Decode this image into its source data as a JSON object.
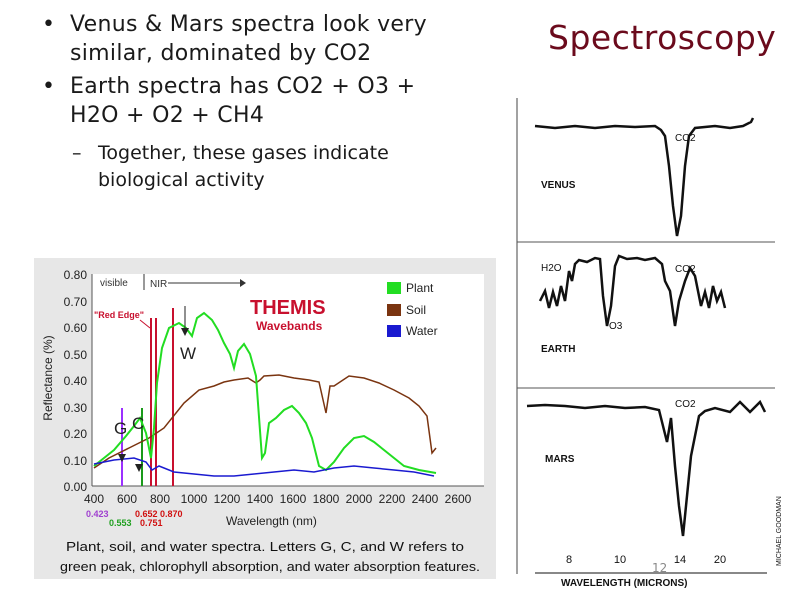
{
  "slide": {
    "title": "Spectroscopy",
    "bullets": [
      "Venus & Mars spectra look very similar, dominated by CO2",
      "Earth spectra has CO2 + O3 + H2O + O2 + CH4"
    ],
    "sub_bullet": "Together, these gases indicate biological activity",
    "dot_glyph": "•",
    "dash_glyph": "–",
    "page_number": "12"
  },
  "themis_figure": {
    "ylabel": "Reflectance (%)",
    "xlabel": "Wavelength (nm)",
    "title": "THEMIS",
    "subtitle": "Wavebands",
    "region_labels": [
      "visible",
      "NIR"
    ],
    "red_edge_label": "\"Red Edge\"",
    "feature_letters": [
      "W",
      "G",
      "C"
    ],
    "y_ticks": [
      "0.80",
      "0.70",
      "0.60",
      "0.50",
      "0.40",
      "0.30",
      "0.20",
      "0.10",
      "0.00"
    ],
    "x_ticks": [
      "400",
      "600",
      "800",
      "1000",
      "1200",
      "1400",
      "1600",
      "1800",
      "2000",
      "2200",
      "2400",
      "2600"
    ],
    "band_labels_top": [
      {
        "text": "0.423",
        "color": "#a040d0"
      },
      {
        "text": "0.652",
        "color": "#d01010"
      },
      {
        "text": "0.870",
        "color": "#d01010"
      }
    ],
    "band_labels_bottom": [
      {
        "text": "0.553",
        "color": "#20a020"
      },
      {
        "text": "0.751",
        "color": "#d01010"
      }
    ],
    "legend": [
      {
        "label": "Plant",
        "color": "#22dd22"
      },
      {
        "label": "Soil",
        "color": "#7a3410"
      },
      {
        "label": "Water",
        "color": "#1a1ad0"
      }
    ],
    "caption_line1": "Plant, soil, and water spectra.  Letters G, C, and W refers to",
    "caption_line2": "green peak, chlorophyll absorption, and water absorption features."
  },
  "planet_figure": {
    "labels": {
      "venus": "VENUS",
      "earth": "EARTH",
      "mars": "MARS",
      "h2o": "H2O",
      "co2_venus": "CO2",
      "co2_earth": "CO2",
      "co2_mars": "CO2",
      "o3": "O3"
    },
    "x_ticks": [
      "8",
      "10",
      "14",
      "20"
    ],
    "xlabel": "WAVELENGTH (MICRONS)",
    "credit": "MICHAEL GOODMAN"
  }
}
